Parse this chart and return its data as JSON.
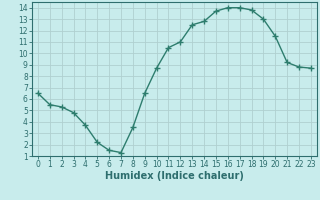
{
  "x": [
    0,
    1,
    2,
    3,
    4,
    5,
    6,
    7,
    8,
    9,
    10,
    11,
    12,
    13,
    14,
    15,
    16,
    17,
    18,
    19,
    20,
    21,
    22,
    23
  ],
  "y": [
    6.5,
    5.5,
    5.3,
    4.8,
    3.7,
    2.2,
    1.5,
    1.3,
    3.5,
    6.5,
    8.7,
    10.5,
    11.0,
    12.5,
    12.8,
    13.7,
    14.0,
    14.0,
    13.8,
    13.0,
    11.5,
    9.2,
    8.8,
    8.7
  ],
  "line_color": "#2e7d6e",
  "marker": "+",
  "marker_size": 4,
  "bg_color": "#c8ecec",
  "grid_color": "#b0d0d0",
  "axis_color": "#2e6e6e",
  "xlabel": "Humidex (Indice chaleur)",
  "xlim": [
    -0.5,
    23.5
  ],
  "ylim": [
    1,
    14.5
  ],
  "xticks": [
    0,
    1,
    2,
    3,
    4,
    5,
    6,
    7,
    8,
    9,
    10,
    11,
    12,
    13,
    14,
    15,
    16,
    17,
    18,
    19,
    20,
    21,
    22,
    23
  ],
  "yticks": [
    1,
    2,
    3,
    4,
    5,
    6,
    7,
    8,
    9,
    10,
    11,
    12,
    13,
    14
  ],
  "tick_label_size": 5.5,
  "xlabel_size": 7,
  "line_width": 1.0,
  "marker_edge_width": 1.0
}
